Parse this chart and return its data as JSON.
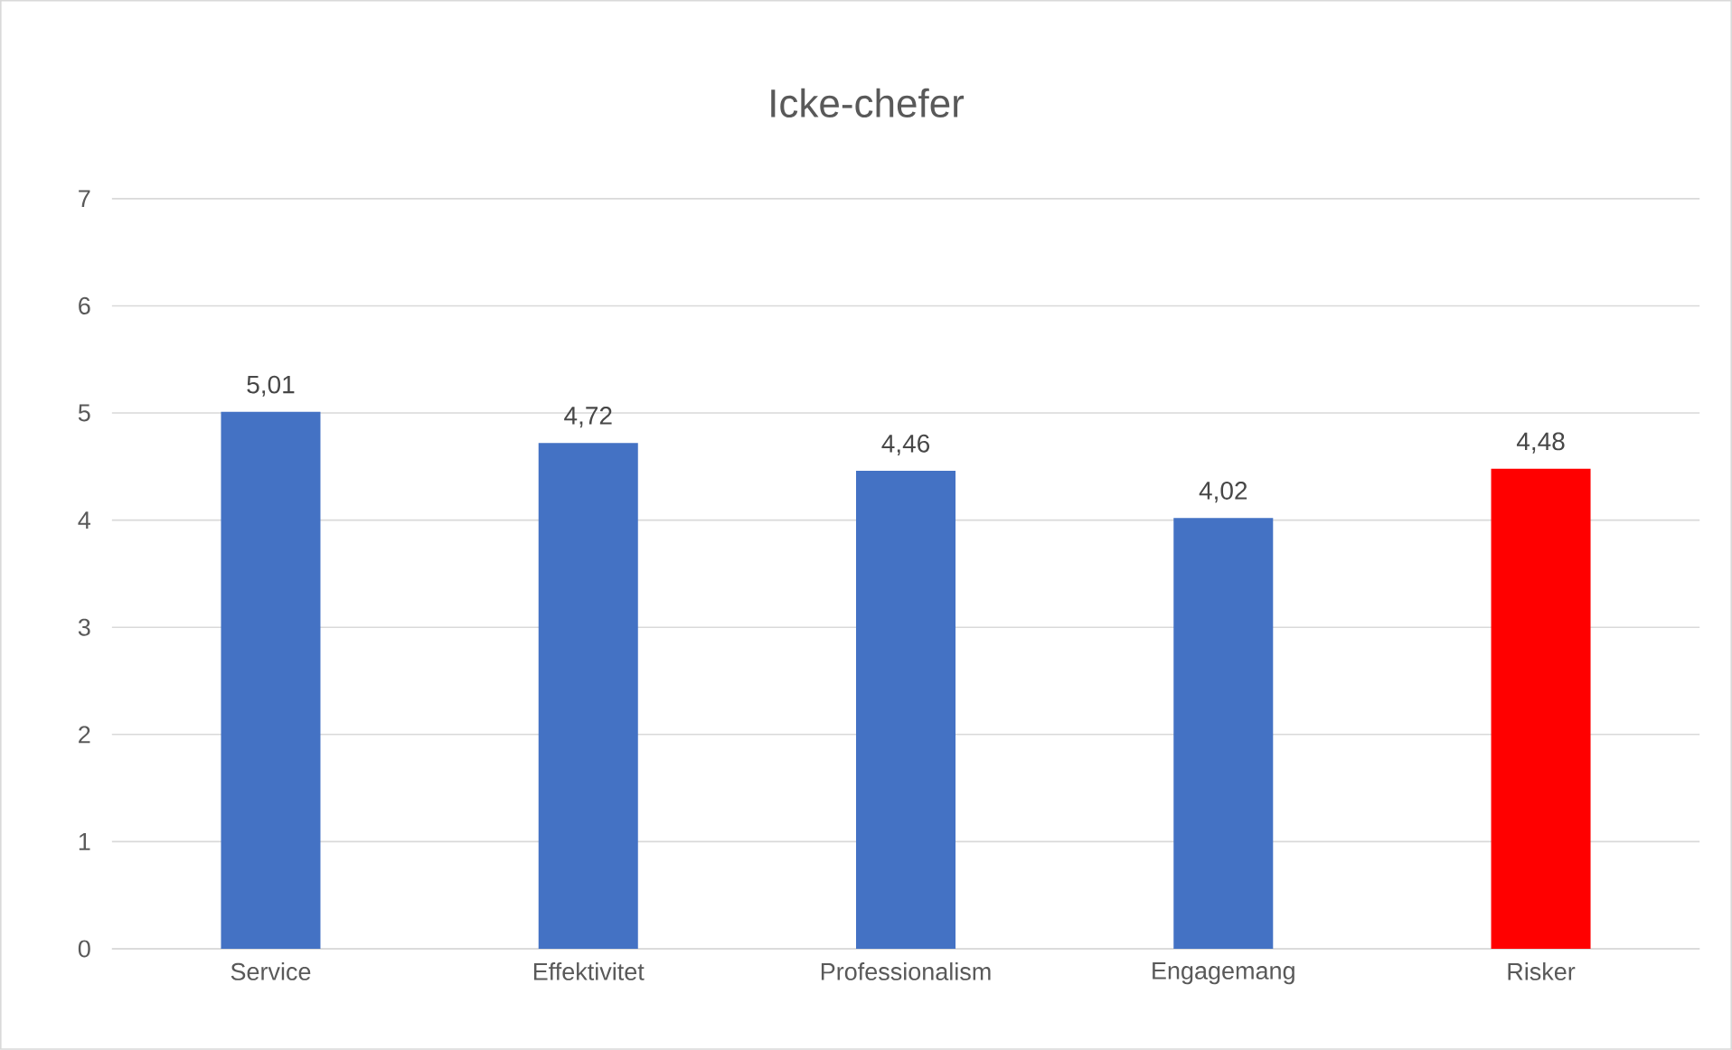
{
  "chart_data": {
    "type": "bar",
    "title": "Icke-chefer",
    "categories": [
      "Service",
      "Effektivitet",
      "Professionalism",
      "Engagemang",
      "Risker"
    ],
    "values": [
      5.01,
      4.72,
      4.46,
      4.02,
      4.48
    ],
    "colors": [
      "#4472c4",
      "#4472c4",
      "#4472c4",
      "#4472c4",
      "#ff0000"
    ],
    "value_labels": [
      "5,01",
      "4,72",
      "4,46",
      "4,02",
      "4,48"
    ],
    "ylim": [
      0,
      7
    ],
    "yticks": [
      0,
      1,
      2,
      3,
      4,
      5,
      6,
      7
    ],
    "grid": "y"
  }
}
